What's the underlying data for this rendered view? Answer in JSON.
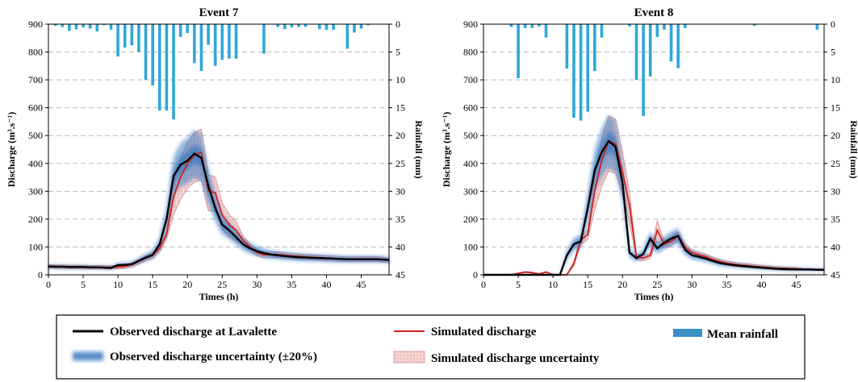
{
  "chart_data": [
    {
      "type": "line",
      "title": "Event 7",
      "xlabel": "Times (h)",
      "ylabel_left": "Discharge (m³.s⁻¹)",
      "ylabel_right": "Rainfall (mm)",
      "xlim": [
        0,
        49
      ],
      "ylim_left": [
        0,
        900
      ],
      "ylim_right": [
        0,
        45
      ],
      "right_axis_inverted": true,
      "xticks": [
        0,
        5,
        10,
        15,
        20,
        25,
        30,
        35,
        40,
        45
      ],
      "yticks_left": [
        0,
        100,
        200,
        300,
        400,
        500,
        600,
        700,
        800,
        900
      ],
      "yticks_right": [
        0,
        5,
        10,
        15,
        20,
        25,
        30,
        35,
        40,
        45
      ],
      "grid": "horizontal-dashed",
      "x": [
        0,
        1,
        2,
        3,
        4,
        5,
        6,
        7,
        8,
        9,
        10,
        11,
        12,
        13,
        14,
        15,
        16,
        17,
        18,
        19,
        20,
        21,
        22,
        23,
        24,
        25,
        26,
        27,
        28,
        29,
        30,
        31,
        32,
        33,
        34,
        35,
        36,
        37,
        38,
        39,
        40,
        41,
        42,
        43,
        44,
        45,
        46,
        47,
        48,
        49
      ],
      "series": [
        {
          "name": "Observed discharge at Lavalette",
          "color": "#000000",
          "values": [
            30,
            29,
            29,
            28,
            28,
            28,
            27,
            27,
            26,
            25,
            35,
            36,
            38,
            50,
            62,
            72,
            110,
            200,
            355,
            395,
            410,
            435,
            420,
            320,
            240,
            180,
            160,
            135,
            110,
            95,
            85,
            78,
            73,
            70,
            67,
            65,
            63,
            62,
            61,
            60,
            59,
            58,
            57,
            56,
            56,
            56,
            56,
            56,
            55,
            53
          ]
        },
        {
          "name": "Simulated discharge",
          "color": "#cc2222",
          "values": [
            30,
            29,
            29,
            28,
            28,
            28,
            27,
            27,
            27,
            27,
            28,
            30,
            36,
            48,
            60,
            70,
            95,
            145,
            280,
            350,
            400,
            430,
            440,
            300,
            295,
            215,
            180,
            160,
            125,
            100,
            80,
            72,
            72,
            73,
            70,
            68,
            66,
            64,
            63,
            62,
            60,
            59,
            57,
            56,
            56,
            57,
            57,
            57,
            55,
            52
          ]
        },
        {
          "name": "Mean rainfall",
          "color": "#2ea8d8",
          "values": [
            0,
            0.3,
            0.5,
            1.2,
            0.9,
            0.6,
            0.8,
            1.3,
            0.2,
            1.0,
            5.8,
            4.2,
            3.8,
            5.0,
            10.0,
            11.0,
            15.5,
            15.5,
            17.1,
            2.3,
            1.6,
            7.0,
            8.4,
            3.7,
            7.5,
            6.4,
            6.2,
            6.2,
            0,
            0,
            0,
            5.3,
            0,
            0.5,
            0.9,
            0.6,
            0.5,
            0.5,
            0,
            0.9,
            1.0,
            1.0,
            0,
            4.4,
            1.5,
            0.8,
            0.2,
            0,
            0,
            0
          ]
        }
      ]
    },
    {
      "type": "line",
      "title": "Event 8",
      "xlabel": "Times (h)",
      "ylabel_left": "Discharge (m³.s⁻¹)",
      "ylabel_right": "Rainfall (mm)",
      "xlim": [
        0,
        49
      ],
      "ylim_left": [
        0,
        900
      ],
      "ylim_right": [
        0,
        45
      ],
      "right_axis_inverted": true,
      "xticks": [
        0,
        5,
        10,
        15,
        20,
        25,
        30,
        35,
        40,
        45
      ],
      "yticks_left": [
        0,
        100,
        200,
        300,
        400,
        500,
        600,
        700,
        800,
        900
      ],
      "yticks_right": [
        0,
        5,
        10,
        15,
        20,
        25,
        30,
        35,
        40,
        45
      ],
      "grid": "horizontal-dashed",
      "x": [
        0,
        1,
        2,
        3,
        4,
        5,
        6,
        7,
        8,
        9,
        10,
        11,
        12,
        13,
        14,
        15,
        16,
        17,
        18,
        19,
        20,
        21,
        22,
        23,
        24,
        25,
        26,
        27,
        28,
        29,
        30,
        31,
        32,
        33,
        34,
        35,
        36,
        37,
        38,
        39,
        40,
        41,
        42,
        43,
        44,
        45,
        46,
        47,
        48,
        49
      ],
      "series": [
        {
          "name": "Observed discharge at Lavalette",
          "color": "#000000",
          "values": [
            0,
            0,
            0,
            0,
            0,
            0,
            0,
            0,
            0,
            0,
            0,
            0,
            70,
            110,
            120,
            240,
            375,
            440,
            480,
            460,
            330,
            80,
            60,
            75,
            130,
            95,
            115,
            130,
            140,
            90,
            70,
            65,
            58,
            50,
            42,
            38,
            35,
            32,
            30,
            28,
            26,
            24,
            22,
            21,
            20,
            20,
            19,
            19,
            18,
            18
          ]
        },
        {
          "name": "Simulated discharge",
          "color": "#cc2222",
          "values": [
            0,
            0,
            0,
            0,
            0,
            5,
            10,
            8,
            3,
            10,
            0,
            0,
            0,
            40,
            125,
            145,
            300,
            410,
            480,
            470,
            370,
            250,
            65,
            60,
            70,
            160,
            110,
            120,
            140,
            100,
            80,
            72,
            65,
            55,
            48,
            42,
            38,
            35,
            33,
            30,
            28,
            26,
            24,
            23,
            22,
            21,
            20,
            20,
            19,
            19
          ]
        },
        {
          "name": "Mean rainfall",
          "color": "#2ea8d8",
          "values": [
            0,
            0,
            0,
            0,
            0.5,
            9.7,
            0.7,
            0.7,
            0.4,
            2.4,
            0,
            0,
            8.0,
            16.8,
            17.3,
            15.7,
            8.4,
            2.4,
            0,
            0,
            0,
            0.4,
            10.0,
            16.5,
            9.4,
            2.3,
            1.0,
            6.7,
            7.9,
            0.7,
            0,
            0,
            0,
            0,
            0,
            0,
            0,
            0,
            0,
            0.3,
            0,
            0,
            0,
            0,
            0,
            0,
            0,
            0,
            1.0,
            0
          ]
        }
      ]
    }
  ],
  "legend": {
    "observed": "Observed discharge at Lavalette",
    "observed_uncertainty": "Observed discharge uncertainty (±20%)",
    "simulated": "Simulated discharge",
    "simulated_uncertainty": "Simulated discharge uncertainty",
    "rainfall": "Mean rainfall"
  },
  "colors": {
    "observed": "#000000",
    "observed_band": "#3a7fc4",
    "simulated": "#cc2222",
    "simulated_band": "#f4c9c9",
    "rainfall": "#2ea8d8",
    "grid": "#b8b8b8"
  }
}
